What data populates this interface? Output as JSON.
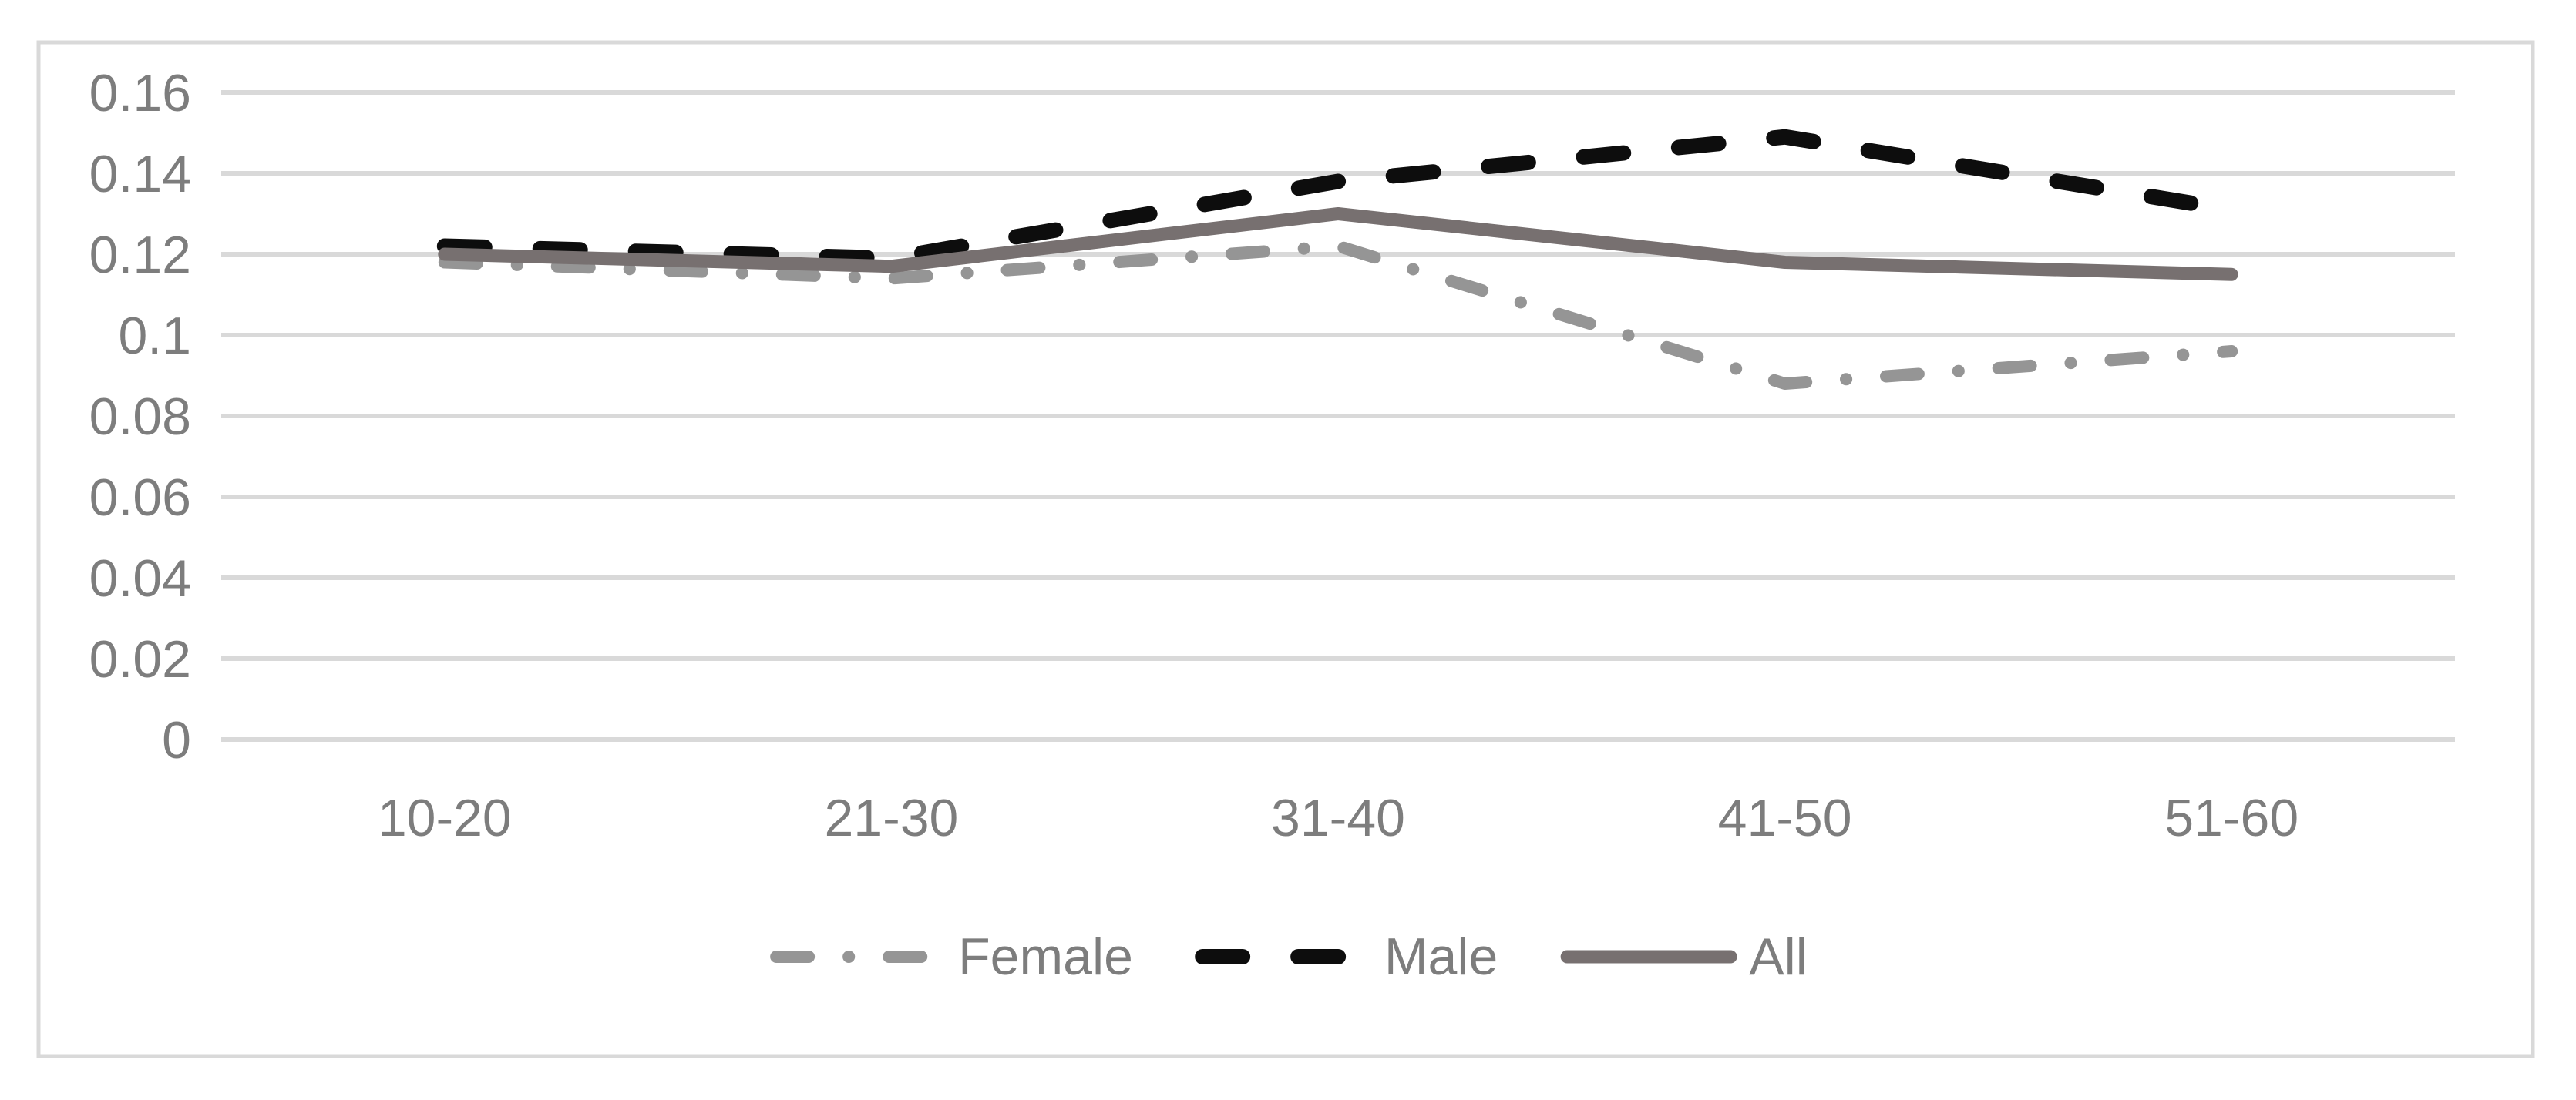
{
  "chart_data": {
    "type": "line",
    "title": "",
    "xlabel": "",
    "ylabel": "",
    "categories": [
      "10-20",
      "21-30",
      "31-40",
      "41-50",
      "51-60"
    ],
    "series": [
      {
        "name": "Female",
        "values": [
          0.118,
          0.114,
          0.122,
          0.088,
          0.096
        ],
        "color": "#959595",
        "line_style": "dash-dot",
        "line_width": 16
      },
      {
        "name": "Male",
        "values": [
          0.122,
          0.119,
          0.138,
          0.149,
          0.131
        ],
        "color": "#0d0d0d",
        "line_style": "dash",
        "line_width": 20
      },
      {
        "name": "All",
        "values": [
          0.12,
          0.117,
          0.13,
          0.118,
          0.115
        ],
        "color": "#777070",
        "line_style": "solid",
        "line_width": 17
      }
    ],
    "ylim": [
      0,
      0.16
    ],
    "y_tick_values": [
      0,
      0.02,
      0.04,
      0.06,
      0.08,
      0.1,
      0.12,
      0.14,
      0.16
    ],
    "y_tick_labels": [
      "0",
      "0.02",
      "0.04",
      "0.06",
      "0.08",
      "0.1",
      "0.12",
      "0.14",
      "0.16"
    ],
    "grid": "horizontal",
    "gridline_color": "#d9d9d9",
    "chart_border_color": "#d9d9d9",
    "axis_text_color": "#7d7d7d",
    "background": "#ffffff",
    "legend_position": "bottom-center",
    "legend_labels": [
      "Female",
      "Male",
      "All"
    ]
  }
}
